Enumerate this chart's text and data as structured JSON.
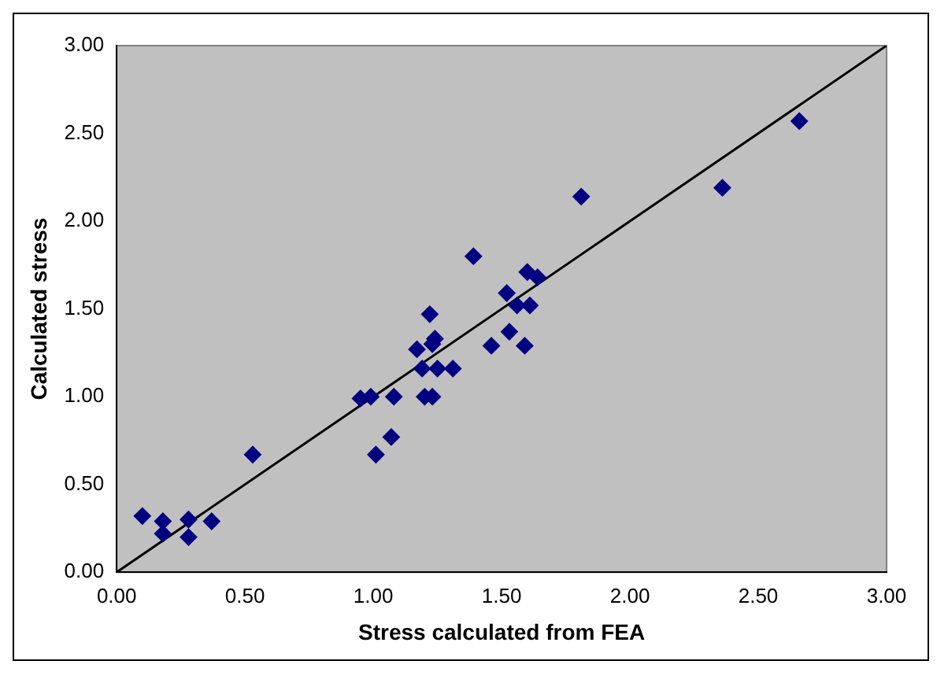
{
  "chart_data": {
    "type": "scatter",
    "xlabel": "Stress calculated from FEA",
    "ylabel": "Calculated stress",
    "xlim": [
      0,
      3
    ],
    "ylim": [
      0,
      3
    ],
    "xticks": [
      {
        "value": 0,
        "label": "0.00"
      },
      {
        "value": 0.5,
        "label": "0.50"
      },
      {
        "value": 1,
        "label": "1.00"
      },
      {
        "value": 1.5,
        "label": "1.50"
      },
      {
        "value": 2,
        "label": "2.00"
      },
      {
        "value": 2.5,
        "label": "2.50"
      },
      {
        "value": 3,
        "label": "3.00"
      }
    ],
    "yticks": [
      {
        "value": 0,
        "label": "0.00"
      },
      {
        "value": 0.5,
        "label": "0.50"
      },
      {
        "value": 1,
        "label": "1.00"
      },
      {
        "value": 1.5,
        "label": "1.50"
      },
      {
        "value": 2,
        "label": "2.00"
      },
      {
        "value": 2.5,
        "label": "2.50"
      },
      {
        "value": 3,
        "label": "3.00"
      }
    ],
    "grid": false,
    "legend": false,
    "series": [
      {
        "marker": "diamond",
        "color": "#000080",
        "x": [
          0.1,
          0.18,
          0.18,
          0.28,
          0.28,
          0.37,
          0.53,
          0.95,
          0.99,
          1.01,
          1.07,
          1.08,
          1.17,
          1.19,
          1.2,
          1.22,
          1.23,
          1.23,
          1.24,
          1.25,
          1.31,
          1.39,
          1.46,
          1.52,
          1.53,
          1.56,
          1.59,
          1.6,
          1.61,
          1.64,
          1.81,
          2.36,
          2.66
        ],
        "values": [
          0.32,
          0.29,
          0.22,
          0.3,
          0.2,
          0.29,
          0.67,
          0.99,
          1.0,
          0.67,
          0.77,
          1.0,
          1.27,
          1.16,
          1.0,
          1.47,
          1.0,
          1.3,
          1.33,
          1.16,
          1.16,
          1.8,
          1.29,
          1.59,
          1.37,
          1.52,
          1.29,
          1.71,
          1.52,
          1.68,
          2.14,
          2.19,
          2.57
        ]
      },
      {
        "type": "line",
        "marker": "none",
        "color": "#000000",
        "x": [
          0,
          3
        ],
        "values": [
          0,
          3
        ]
      }
    ]
  }
}
